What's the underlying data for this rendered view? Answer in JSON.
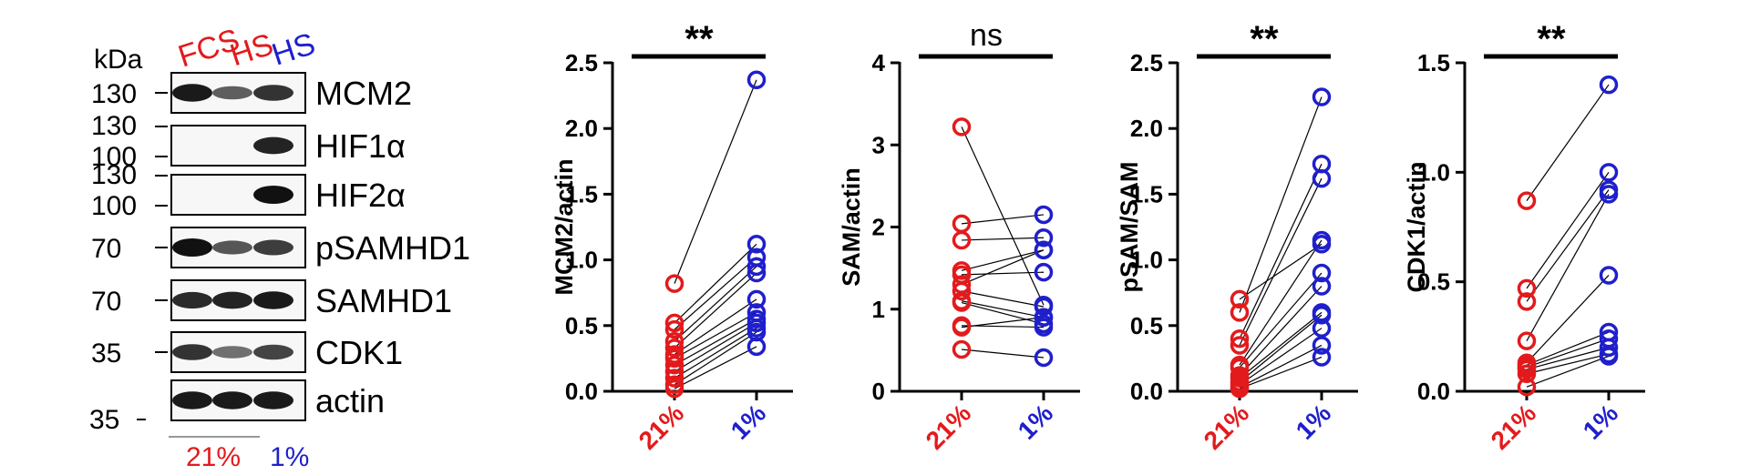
{
  "colors": {
    "normoxia": "#e31a1c",
    "hypoxia": "#1f1fcc",
    "axis": "#000000",
    "band": "#111111"
  },
  "blot": {
    "unit_label": "kDa",
    "lane_labels": [
      {
        "text": "FCS",
        "color": "#e31a1c"
      },
      {
        "text": "HS",
        "color": "#e31a1c"
      },
      {
        "text": "HS",
        "color": "#1f1fcc"
      }
    ],
    "rows": [
      {
        "protein": "MCM2",
        "markers": [
          "130"
        ],
        "bands": [
          0.95,
          0.55,
          0.8
        ]
      },
      {
        "protein": "HIF1α",
        "markers": [
          "130",
          "100"
        ],
        "bands": [
          0.0,
          0.0,
          0.9
        ]
      },
      {
        "protein": "HIF2α",
        "markers": [
          "130",
          "100"
        ],
        "bands": [
          0.0,
          0.0,
          1.0
        ]
      },
      {
        "protein": "pSAMHD1",
        "markers": [
          "70"
        ],
        "bands": [
          1.0,
          0.6,
          0.75
        ]
      },
      {
        "protein": "SAMHD1",
        "markers": [
          "70"
        ],
        "bands": [
          0.85,
          0.9,
          0.95
        ]
      },
      {
        "protein": "CDK1",
        "markers": [
          "35"
        ],
        "bands": [
          0.8,
          0.45,
          0.7
        ]
      },
      {
        "protein": "actin",
        "markers": [],
        "bands": [
          0.95,
          0.95,
          0.95
        ]
      }
    ],
    "bottom_marker": "35",
    "conditions": [
      {
        "text": "21%",
        "color": "#e31a1c"
      },
      {
        "text": "1%",
        "color": "#1f1fcc"
      }
    ]
  },
  "chart_data": [
    {
      "type": "scatter",
      "subtype": "paired",
      "ylabel": "MCM2/actin",
      "categories": [
        "21%",
        "1%"
      ],
      "ylim": [
        0,
        2.5
      ],
      "yticks": [
        "0.0",
        "0.5",
        "1.0",
        "1.5",
        "2.0",
        "2.5"
      ],
      "significance": "**",
      "pairs": [
        [
          0.82,
          2.37
        ],
        [
          0.52,
          1.12
        ],
        [
          0.47,
          1.02
        ],
        [
          0.38,
          0.95
        ],
        [
          0.33,
          0.9
        ],
        [
          0.28,
          0.7
        ],
        [
          0.25,
          0.6
        ],
        [
          0.2,
          0.55
        ],
        [
          0.15,
          0.52
        ],
        [
          0.1,
          0.48
        ],
        [
          0.05,
          0.45
        ],
        [
          0.02,
          0.34
        ]
      ]
    },
    {
      "type": "scatter",
      "subtype": "paired",
      "ylabel": "SAM/actin",
      "categories": [
        "21%",
        "1%"
      ],
      "ylim": [
        0,
        4
      ],
      "yticks": [
        "0",
        "1",
        "2",
        "3",
        "4"
      ],
      "significance": "ns",
      "pairs": [
        [
          3.22,
          1.05
        ],
        [
          2.04,
          2.15
        ],
        [
          1.84,
          1.87
        ],
        [
          1.47,
          1.72
        ],
        [
          1.42,
          1.45
        ],
        [
          1.3,
          1.72
        ],
        [
          1.22,
          1.03
        ],
        [
          1.1,
          0.9
        ],
        [
          1.08,
          0.82
        ],
        [
          0.8,
          0.78
        ],
        [
          0.78,
          0.9
        ],
        [
          0.51,
          0.41
        ]
      ]
    },
    {
      "type": "scatter",
      "subtype": "paired",
      "ylabel": "pSAM/SAM",
      "categories": [
        "21%",
        "1%"
      ],
      "ylim": [
        0,
        2.5
      ],
      "yticks": [
        "0.0",
        "0.5",
        "1.0",
        "1.5",
        "2.0",
        "2.5"
      ],
      "significance": "**",
      "pairs": [
        [
          0.7,
          1.12
        ],
        [
          0.6,
          2.24
        ],
        [
          0.4,
          1.73
        ],
        [
          0.35,
          1.62
        ],
        [
          0.2,
          1.15
        ],
        [
          0.18,
          0.9
        ],
        [
          0.12,
          0.8
        ],
        [
          0.1,
          0.6
        ],
        [
          0.07,
          0.58
        ],
        [
          0.05,
          0.48
        ],
        [
          0.03,
          0.35
        ],
        [
          0.02,
          0.26
        ]
      ]
    },
    {
      "type": "scatter",
      "subtype": "paired",
      "ylabel": "CDK1/actin",
      "categories": [
        "21%",
        "1%"
      ],
      "ylim": [
        0,
        1.5
      ],
      "yticks": [
        "0.0",
        "0.5",
        "1.0",
        "1.5"
      ],
      "significance": "**",
      "pairs": [
        [
          0.87,
          1.4
        ],
        [
          0.47,
          1.0
        ],
        [
          0.41,
          0.92
        ],
        [
          0.23,
          0.9
        ],
        [
          0.13,
          0.53
        ],
        [
          0.12,
          0.27
        ],
        [
          0.11,
          0.24
        ],
        [
          0.1,
          0.2
        ],
        [
          0.08,
          0.17
        ],
        [
          0.02,
          0.16
        ]
      ]
    }
  ]
}
